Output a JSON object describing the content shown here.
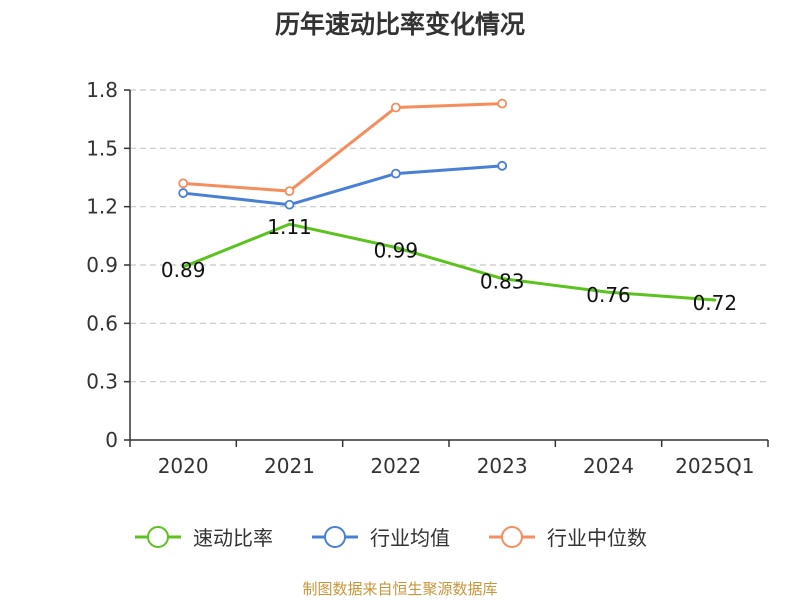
{
  "chart_data": {
    "type": "line",
    "title": "历年速动比率变化情况",
    "categories": [
      "2020",
      "2021",
      "2022",
      "2023",
      "2024",
      "2025Q1"
    ],
    "ylim": [
      0,
      1.8
    ],
    "y_ticks": [
      "0",
      "0.3",
      "0.6",
      "0.9",
      "1.2",
      "1.5",
      "1.8"
    ],
    "grid": true,
    "legend_position": "bottom",
    "series": [
      {
        "name": "速动比率",
        "values": [
          0.89,
          1.11,
          0.99,
          0.83,
          0.76,
          0.72
        ],
        "data_labels": [
          "0.89",
          "1.11",
          "0.99",
          "0.83",
          "0.76",
          "0.72"
        ],
        "color": "#5cc21e"
      },
      {
        "name": "行业均值",
        "values": [
          1.27,
          1.21,
          1.37,
          1.41,
          null,
          null
        ],
        "color": "#4a7fd8"
      },
      {
        "name": "行业中位数",
        "values": [
          1.32,
          1.28,
          1.71,
          1.73,
          null,
          null
        ],
        "color": "#f58d5c"
      }
    ]
  },
  "source": {
    "text": "制图数据来自恒生聚源数据库",
    "color": "#c9953b"
  },
  "colors": {
    "axis": "#333333",
    "grid": "#c8c8c8"
  }
}
